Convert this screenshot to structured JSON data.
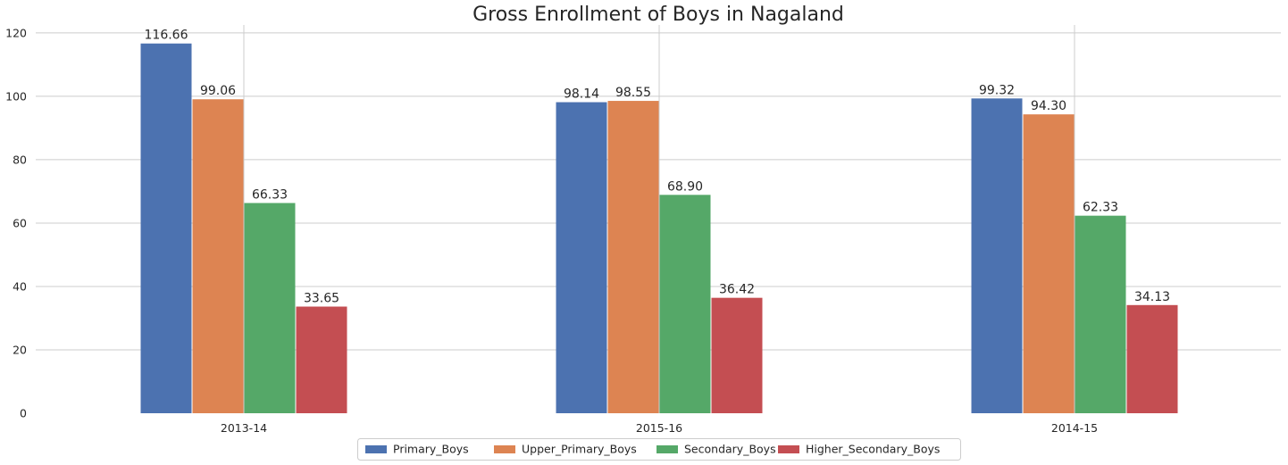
{
  "chart_data": {
    "type": "bar",
    "title": "Gross Enrollment of Boys in Nagaland",
    "xlabel": "",
    "ylabel": "",
    "categories": [
      "2013-14",
      "2015-16",
      "2014-15"
    ],
    "series": [
      {
        "name": "Primary_Boys",
        "color": "#4c72b0",
        "values": [
          116.66,
          98.14,
          99.32
        ],
        "labels": [
          "116.66",
          "98.14",
          "99.32"
        ]
      },
      {
        "name": "Upper_Primary_Boys",
        "color": "#dd8452",
        "values": [
          99.06,
          98.55,
          94.3
        ],
        "labels": [
          "99.06",
          "98.55",
          "94.30"
        ]
      },
      {
        "name": "Secondary_Boys",
        "color": "#55a868",
        "values": [
          66.33,
          68.9,
          62.33
        ],
        "labels": [
          "66.33",
          "68.90",
          "62.33"
        ]
      },
      {
        "name": "Higher_Secondary_Boys",
        "color": "#c44e52",
        "values": [
          33.65,
          36.42,
          34.13
        ],
        "labels": [
          "33.65",
          "36.42",
          "34.13"
        ]
      }
    ],
    "ylim": [
      0,
      122.5
    ],
    "yticks": [
      0,
      20,
      40,
      60,
      80,
      100,
      120
    ],
    "grid": true,
    "legend_position": "bottom-center"
  }
}
